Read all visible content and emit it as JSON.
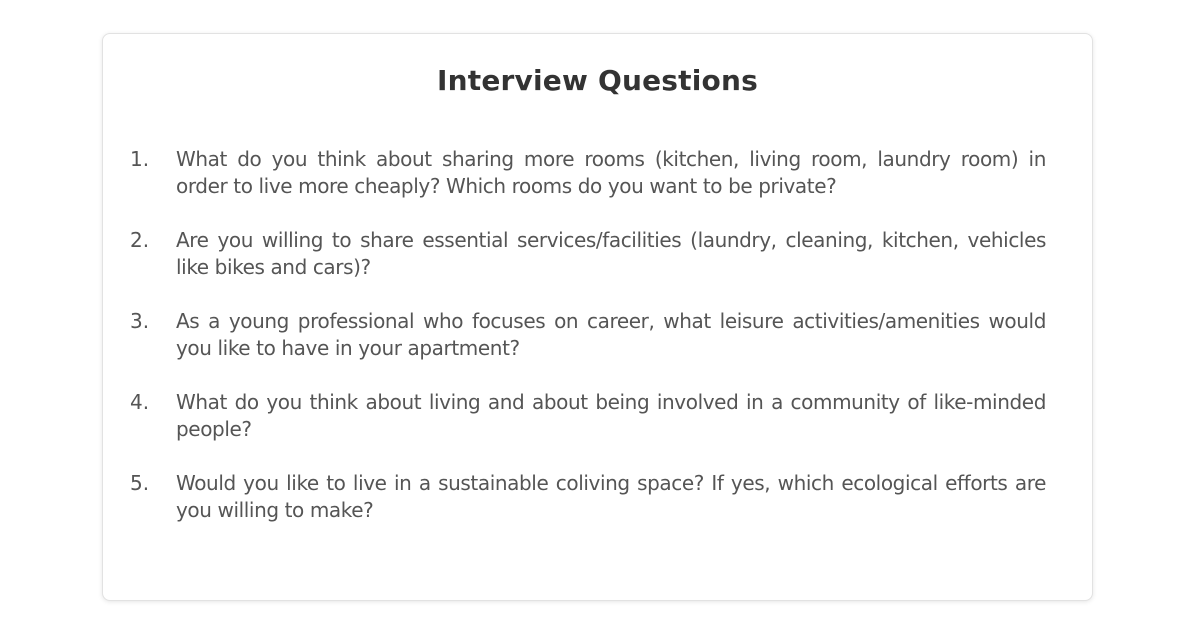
{
  "document": {
    "title": "Interview Questions",
    "questions": [
      {
        "number": "1.",
        "text": "What do you think about sharing more rooms (kitchen, living room, laundry room) in order to live more cheaply? Which rooms do you want to be private?"
      },
      {
        "number": "2.",
        "text": "Are you willing to share essential services/facilities (laundry, cleaning, kitchen, vehicles like bikes and cars)?"
      },
      {
        "number": "3.",
        "text": "As a young professional who focuses on career, what leisure activities/amenities would you like to have in your apartment?"
      },
      {
        "number": "4.",
        "text": "What do you think about living and about being involved in a community of like-minded people?"
      },
      {
        "number": "5.",
        "text": "Would you like to live in a sustainable coliving space? If yes, which ecological efforts are you willing to make?"
      }
    ]
  },
  "colors": {
    "title": "#333333",
    "text": "#555555",
    "card_border": "#e2e2e2",
    "background": "#ffffff"
  }
}
